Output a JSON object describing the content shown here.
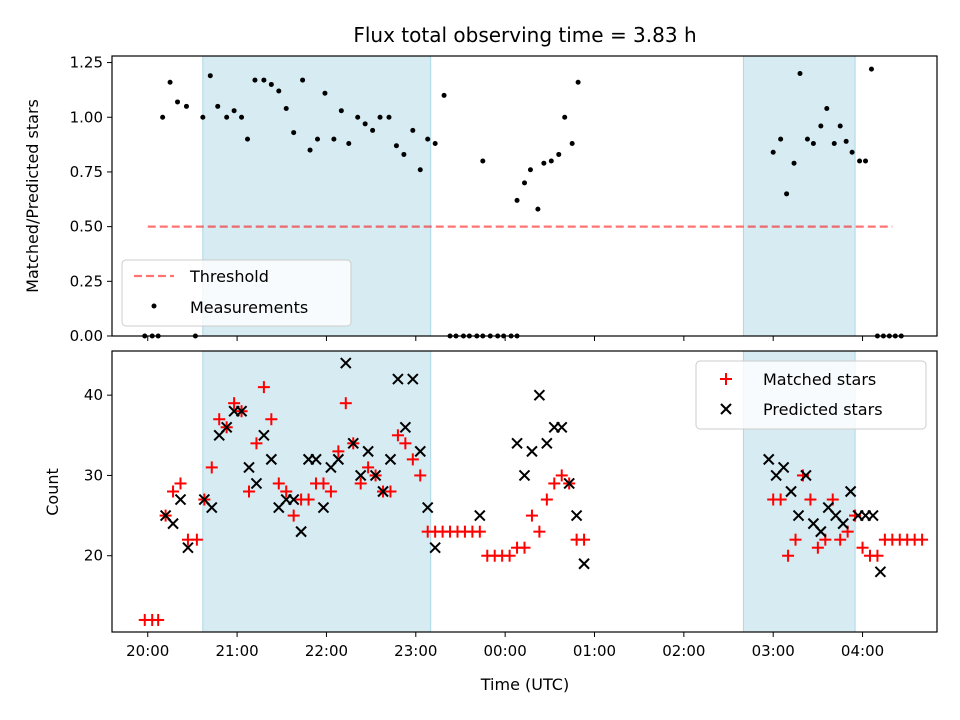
{
  "chart_data": {
    "title": "Flux total observing time = 3.83 h",
    "colors": {
      "shade": "#add8e6",
      "threshold": "#ff0000",
      "measurements": "#000000",
      "matched": "#ff0000",
      "predicted": "#000000"
    },
    "x_axis": {
      "label": "Time (UTC)",
      "range": [
        "19:36",
        "04:50"
      ],
      "ticks": [
        "20:00",
        "21:00",
        "22:00",
        "23:00",
        "00:00",
        "01:00",
        "02:00",
        "03:00",
        "04:00"
      ]
    },
    "shaded_intervals": [
      [
        "20:37",
        "23:10"
      ],
      [
        "02:40",
        "03:55"
      ]
    ],
    "panels": [
      {
        "type": "scatter",
        "ylabel": "Matched/Predicted stars",
        "ylim": [
          0,
          1.28
        ],
        "yticks": [
          "0.00",
          "0.25",
          "0.50",
          "0.75",
          "1.00",
          "1.25"
        ],
        "legend": {
          "position": "lower-left",
          "entries": [
            "Threshold",
            "Measurements"
          ]
        },
        "threshold": {
          "name": "Threshold",
          "value": 0.5,
          "x_range": [
            "20:00",
            "04:20"
          ]
        },
        "series": [
          {
            "name": "Measurements",
            "points": [
              [
                "19:58",
                0
              ],
              [
                "20:03",
                0
              ],
              [
                "20:07",
                0
              ],
              [
                "20:10",
                1.0
              ],
              [
                "20:15",
                1.16
              ],
              [
                "20:20",
                1.07
              ],
              [
                "20:26",
                1.05
              ],
              [
                "20:32",
                0
              ],
              [
                "20:37",
                1.0
              ],
              [
                "20:42",
                1.19
              ],
              [
                "20:47",
                1.05
              ],
              [
                "20:53",
                1.0
              ],
              [
                "20:58",
                1.03
              ],
              [
                "21:03",
                1.0
              ],
              [
                "21:07",
                0.9
              ],
              [
                "21:12",
                1.17
              ],
              [
                "21:18",
                1.17
              ],
              [
                "21:23",
                1.15
              ],
              [
                "21:28",
                1.12
              ],
              [
                "21:33",
                1.04
              ],
              [
                "21:38",
                0.93
              ],
              [
                "21:44",
                1.17
              ],
              [
                "21:49",
                0.85
              ],
              [
                "21:54",
                0.9
              ],
              [
                "21:59",
                1.11
              ],
              [
                "22:05",
                0.9
              ],
              [
                "22:10",
                1.03
              ],
              [
                "22:15",
                0.88
              ],
              [
                "22:21",
                1.0
              ],
              [
                "22:26",
                0.97
              ],
              [
                "22:31",
                0.94
              ],
              [
                "22:36",
                1.0
              ],
              [
                "22:42",
                1.0
              ],
              [
                "22:47",
                0.87
              ],
              [
                "22:52",
                0.83
              ],
              [
                "22:58",
                0.94
              ],
              [
                "23:03",
                0.76
              ],
              [
                "23:08",
                0.9
              ],
              [
                "23:13",
                0.88
              ],
              [
                "23:19",
                1.1
              ],
              [
                "23:23",
                0
              ],
              [
                "23:27",
                0
              ],
              [
                "23:32",
                0
              ],
              [
                "23:36",
                0
              ],
              [
                "23:41",
                0
              ],
              [
                "23:45",
                0
              ],
              [
                "23:50",
                0
              ],
              [
                "23:55",
                0
              ],
              [
                "23:59",
                0
              ],
              [
                "00:04",
                0
              ],
              [
                "00:08",
                0
              ],
              [
                "23:45",
                0.8
              ],
              [
                "00:08",
                0.62
              ],
              [
                "00:13",
                0.7
              ],
              [
                "00:17",
                0.76
              ],
              [
                "00:22",
                0.58
              ],
              [
                "00:26",
                0.79
              ],
              [
                "00:31",
                0.8
              ],
              [
                "00:36",
                0.83
              ],
              [
                "00:40",
                1.0
              ],
              [
                "00:45",
                0.88
              ],
              [
                "00:49",
                1.16
              ],
              [
                "03:00",
                0.84
              ],
              [
                "03:05",
                0.9
              ],
              [
                "03:09",
                0.65
              ],
              [
                "03:14",
                0.79
              ],
              [
                "03:18",
                1.2
              ],
              [
                "03:23",
                0.9
              ],
              [
                "03:27",
                0.88
              ],
              [
                "03:32",
                0.96
              ],
              [
                "03:36",
                1.04
              ],
              [
                "03:41",
                0.88
              ],
              [
                "03:45",
                0.96
              ],
              [
                "03:49",
                0.89
              ],
              [
                "03:53",
                0.84
              ],
              [
                "03:58",
                0.8
              ],
              [
                "04:02",
                0.8
              ],
              [
                "04:06",
                1.22
              ],
              [
                "04:10",
                0
              ],
              [
                "04:14",
                0
              ],
              [
                "04:18",
                0
              ],
              [
                "04:22",
                0
              ],
              [
                "04:26",
                0
              ]
            ]
          }
        ]
      },
      {
        "type": "scatter",
        "ylabel": "Count",
        "ylim": [
          10.5,
          45.5
        ],
        "yticks": [
          "20",
          "30",
          "40"
        ],
        "legend": {
          "position": "upper-right",
          "entries": [
            "Matched stars",
            "Predicted stars"
          ]
        },
        "series": [
          {
            "name": "Matched stars",
            "marker": "plus",
            "points": [
              [
                "19:58",
                12
              ],
              [
                "20:03",
                12
              ],
              [
                "20:07",
                12
              ],
              [
                "20:12",
                25
              ],
              [
                "20:17",
                28
              ],
              [
                "20:22",
                29
              ],
              [
                "20:27",
                22
              ],
              [
                "20:33",
                22
              ],
              [
                "20:38",
                27
              ],
              [
                "20:43",
                31
              ],
              [
                "20:48",
                37
              ],
              [
                "20:53",
                36
              ],
              [
                "20:58",
                39
              ],
              [
                "21:03",
                38
              ],
              [
                "21:08",
                28
              ],
              [
                "21:13",
                34
              ],
              [
                "21:18",
                41
              ],
              [
                "21:23",
                37
              ],
              [
                "21:28",
                29
              ],
              [
                "21:33",
                28
              ],
              [
                "21:38",
                25
              ],
              [
                "21:43",
                27
              ],
              [
                "21:48",
                27
              ],
              [
                "21:53",
                29
              ],
              [
                "21:58",
                29
              ],
              [
                "22:03",
                28
              ],
              [
                "22:08",
                33
              ],
              [
                "22:13",
                39
              ],
              [
                "22:18",
                34
              ],
              [
                "22:23",
                29
              ],
              [
                "22:28",
                31
              ],
              [
                "22:33",
                30
              ],
              [
                "22:38",
                28
              ],
              [
                "22:43",
                28
              ],
              [
                "22:48",
                35
              ],
              [
                "22:53",
                34
              ],
              [
                "22:58",
                32
              ],
              [
                "23:03",
                30
              ],
              [
                "23:08",
                23
              ],
              [
                "23:13",
                23
              ],
              [
                "23:18",
                23
              ],
              [
                "23:23",
                23
              ],
              [
                "23:28",
                23
              ],
              [
                "23:33",
                23
              ],
              [
                "23:38",
                23
              ],
              [
                "23:43",
                23
              ],
              [
                "23:48",
                20
              ],
              [
                "23:53",
                20
              ],
              [
                "23:58",
                20
              ],
              [
                "00:03",
                20
              ],
              [
                "00:08",
                21
              ],
              [
                "00:13",
                21
              ],
              [
                "00:18",
                25
              ],
              [
                "00:23",
                23
              ],
              [
                "00:28",
                27
              ],
              [
                "00:33",
                29
              ],
              [
                "00:38",
                30
              ],
              [
                "00:43",
                29
              ],
              [
                "00:48",
                22
              ],
              [
                "00:53",
                22
              ],
              [
                "03:00",
                27
              ],
              [
                "03:05",
                27
              ],
              [
                "03:10",
                20
              ],
              [
                "03:15",
                22
              ],
              [
                "03:20",
                30
              ],
              [
                "03:25",
                27
              ],
              [
                "03:30",
                21
              ],
              [
                "03:35",
                22
              ],
              [
                "03:40",
                27
              ],
              [
                "03:45",
                22
              ],
              [
                "03:50",
                23
              ],
              [
                "03:55",
                25
              ],
              [
                "04:00",
                21
              ],
              [
                "04:05",
                20
              ],
              [
                "04:10",
                20
              ],
              [
                "04:15",
                22
              ],
              [
                "04:20",
                22
              ],
              [
                "04:25",
                22
              ],
              [
                "04:30",
                22
              ],
              [
                "04:35",
                22
              ],
              [
                "04:40",
                22
              ]
            ]
          },
          {
            "name": "Predicted stars",
            "marker": "x",
            "points": [
              [
                "20:12",
                25
              ],
              [
                "20:17",
                24
              ],
              [
                "20:22",
                27
              ],
              [
                "20:27",
                21
              ],
              [
                "20:38",
                27
              ],
              [
                "20:43",
                26
              ],
              [
                "20:48",
                35
              ],
              [
                "20:53",
                36
              ],
              [
                "20:58",
                38
              ],
              [
                "21:03",
                38
              ],
              [
                "21:08",
                31
              ],
              [
                "21:13",
                29
              ],
              [
                "21:18",
                35
              ],
              [
                "21:23",
                32
              ],
              [
                "21:28",
                26
              ],
              [
                "21:33",
                27
              ],
              [
                "21:38",
                27
              ],
              [
                "21:43",
                23
              ],
              [
                "21:48",
                32
              ],
              [
                "21:53",
                32
              ],
              [
                "21:58",
                26
              ],
              [
                "22:03",
                31
              ],
              [
                "22:08",
                32
              ],
              [
                "22:13",
                44
              ],
              [
                "22:18",
                34
              ],
              [
                "22:23",
                30
              ],
              [
                "22:28",
                33
              ],
              [
                "22:33",
                30
              ],
              [
                "22:38",
                28
              ],
              [
                "22:43",
                32
              ],
              [
                "22:48",
                42
              ],
              [
                "22:53",
                36
              ],
              [
                "22:58",
                42
              ],
              [
                "23:03",
                33
              ],
              [
                "23:08",
                26
              ],
              [
                "23:13",
                21
              ],
              [
                "23:43",
                25
              ],
              [
                "00:08",
                34
              ],
              [
                "00:13",
                30
              ],
              [
                "00:18",
                33
              ],
              [
                "00:23",
                40
              ],
              [
                "00:28",
                34
              ],
              [
                "00:33",
                36
              ],
              [
                "00:38",
                36
              ],
              [
                "00:43",
                29
              ],
              [
                "00:48",
                25
              ],
              [
                "00:53",
                19
              ],
              [
                "02:57",
                32
              ],
              [
                "03:02",
                30
              ],
              [
                "03:07",
                31
              ],
              [
                "03:12",
                28
              ],
              [
                "03:17",
                25
              ],
              [
                "03:22",
                30
              ],
              [
                "03:27",
                24
              ],
              [
                "03:32",
                23
              ],
              [
                "03:37",
                26
              ],
              [
                "03:42",
                25
              ],
              [
                "03:47",
                24
              ],
              [
                "03:52",
                28
              ],
              [
                "03:57",
                25
              ],
              [
                "04:02",
                25
              ],
              [
                "04:07",
                25
              ],
              [
                "04:12",
                18
              ]
            ]
          }
        ]
      }
    ]
  }
}
